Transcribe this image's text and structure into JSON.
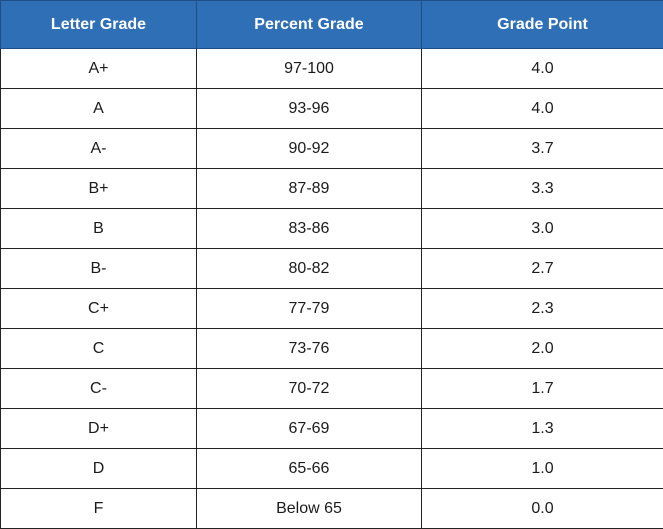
{
  "colors": {
    "header_bg": "#2e6fb5",
    "header_text": "#ffffff",
    "cell_text": "#1a1a1a",
    "border": "#222222"
  },
  "table": {
    "headers": [
      "Letter Grade",
      "Percent Grade",
      "Grade Point"
    ],
    "rows": [
      [
        "A+",
        "97-100",
        "4.0"
      ],
      [
        "A",
        "93-96",
        "4.0"
      ],
      [
        "A-",
        "90-92",
        "3.7"
      ],
      [
        "B+",
        "87-89",
        "3.3"
      ],
      [
        "B",
        "83-86",
        "3.0"
      ],
      [
        "B-",
        "80-82",
        "2.7"
      ],
      [
        "C+",
        "77-79",
        "2.3"
      ],
      [
        "C",
        "73-76",
        "2.0"
      ],
      [
        "C-",
        "70-72",
        "1.7"
      ],
      [
        "D+",
        "67-69",
        "1.3"
      ],
      [
        "D",
        "65-66",
        "1.0"
      ],
      [
        "F",
        "Below 65",
        "0.0"
      ]
    ]
  }
}
